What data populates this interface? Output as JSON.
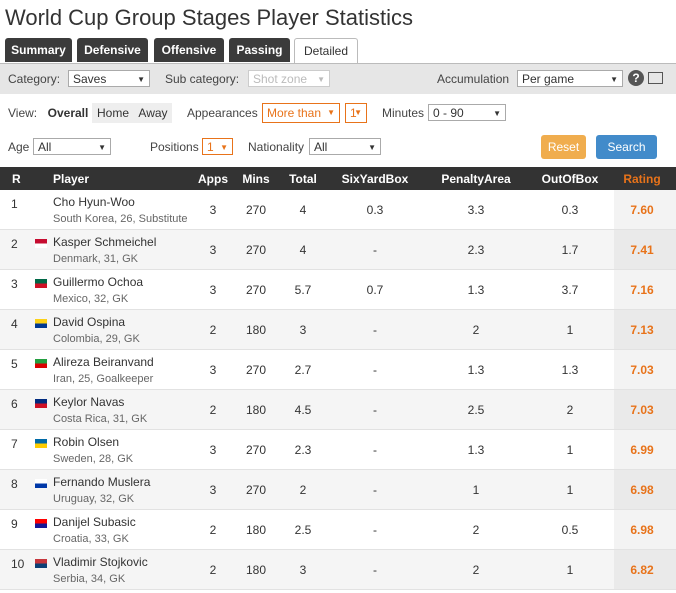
{
  "header": {
    "title": "World Cup Group Stages Player Statistics"
  },
  "tabs": [
    "Summary",
    "Defensive",
    "Offensive",
    "Passing",
    "Detailed"
  ],
  "filters": {
    "category_label": "Category:",
    "category": "Saves",
    "subcategory_label": "Sub category:",
    "subcategory": "Shot zone",
    "accumulation_label": "Accumulation",
    "accumulation": "Per game",
    "view_label": "View:",
    "views": [
      "Overall",
      "Home",
      "Away"
    ],
    "appearances_label": "Appearances",
    "appearances_mode": "More than",
    "appearances_value": "1",
    "minutes_label": "Minutes",
    "minutes": "0 - 90",
    "age_label": "Age",
    "age": "All",
    "positions_label": "Positions",
    "positions": "1",
    "nationality_label": "Nationality",
    "nationality": "All",
    "reset": "Reset",
    "search": "Search"
  },
  "table": {
    "columns": [
      "R",
      "Player",
      "Apps",
      "Mins",
      "Total",
      "SixYardBox",
      "PenaltyArea",
      "OutOfBox",
      "Rating"
    ],
    "rows": [
      [
        "1",
        "Cho Hyun-Woo",
        "South Korea, 26, Substitute",
        "3",
        "270",
        "4",
        "0.3",
        "3.3",
        "0.3",
        "7.60"
      ],
      [
        "2",
        "Kasper Schmeichel",
        "Denmark, 31, GK",
        "3",
        "270",
        "4",
        "-",
        "2.3",
        "1.7",
        "7.41"
      ],
      [
        "3",
        "Guillermo Ochoa",
        "Mexico, 32, GK",
        "3",
        "270",
        "5.7",
        "0.7",
        "1.3",
        "3.7",
        "7.16"
      ],
      [
        "4",
        "David Ospina",
        "Colombia, 29, GK",
        "2",
        "180",
        "3",
        "-",
        "2",
        "1",
        "7.13"
      ],
      [
        "5",
        "Alireza Beiranvand",
        "Iran, 25, Goalkeeper",
        "3",
        "270",
        "2.7",
        "-",
        "1.3",
        "1.3",
        "7.03"
      ],
      [
        "6",
        "Keylor Navas",
        "Costa Rica, 31, GK",
        "2",
        "180",
        "4.5",
        "-",
        "2.5",
        "2",
        "7.03"
      ],
      [
        "7",
        "Robin Olsen",
        "Sweden, 28, GK",
        "3",
        "270",
        "2.3",
        "-",
        "1.3",
        "1",
        "6.99"
      ],
      [
        "8",
        "Fernando Muslera",
        "Uruguay, 32, GK",
        "3",
        "270",
        "2",
        "-",
        "1",
        "1",
        "6.98"
      ],
      [
        "9",
        "Danijel Subasic",
        "Croatia, 33, GK",
        "2",
        "180",
        "2.5",
        "-",
        "2",
        "0.5",
        "6.98"
      ],
      [
        "10",
        "Vladimir Stojkovic",
        "Serbia, 34, GK",
        "2",
        "180",
        "3",
        "-",
        "2",
        "1",
        "6.82"
      ]
    ]
  }
}
